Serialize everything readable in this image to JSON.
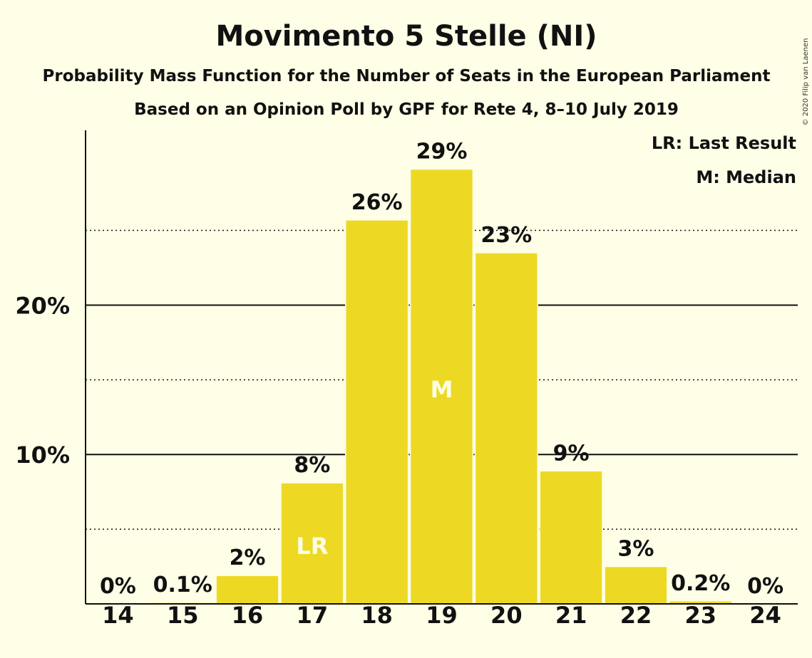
{
  "chart_data": {
    "type": "bar",
    "title": "Movimento 5 Stelle (NI)",
    "subtitle": "Probability Mass Function for the Number of Seats in the European Parliament",
    "subtitle2": "Based on an Opinion Poll by GPF for Rete 4, 8–10 July 2019",
    "categories": [
      "14",
      "15",
      "16",
      "17",
      "18",
      "19",
      "20",
      "21",
      "22",
      "23",
      "24"
    ],
    "values": [
      0,
      0.1,
      1.9,
      8.1,
      25.7,
      29.1,
      23.5,
      8.9,
      2.5,
      0.2,
      0
    ],
    "labels": [
      "0%",
      "0.1%",
      "2%",
      "8%",
      "26%",
      "29%",
      "23%",
      "9%",
      "3%",
      "0.2%",
      "0%"
    ],
    "bar_markers": {
      "17": "LR",
      "19": "M"
    },
    "yticks": [
      {
        "value": 10,
        "label": "10%"
      },
      {
        "value": 20,
        "label": "20%"
      }
    ],
    "minor_gridlines": [
      5,
      15,
      25
    ],
    "ylim": [
      0,
      31.7
    ],
    "legend": {
      "placement": "top-right",
      "entries": [
        "LR: Last Result",
        "M: Median"
      ]
    },
    "copyright": "© 2020 Filip van Laenen",
    "colors": {
      "bar": "#EDD924",
      "background": "#FFFEE6",
      "text": "#111111"
    }
  }
}
